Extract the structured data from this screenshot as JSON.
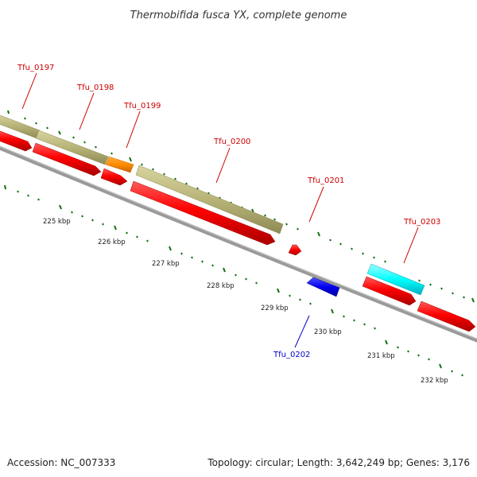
{
  "title": "Thermobifida fusca YX, complete genome",
  "footer": {
    "accession": "Accession: NC_007333",
    "summary": "Topology: circular; Length: 3,642,249 bp; Genes: 3,176"
  },
  "colors": {
    "cds": "#ff0000",
    "gene": "#b8b478",
    "orange_feature": "#ff8c00",
    "cyan_feature": "#00ffff",
    "blue_feature": "#0000ee",
    "forward_label": "#cc0000",
    "reverse_label": "#0000cc",
    "backbone": "#888888",
    "tick": "#107010"
  },
  "genes": [
    {
      "id": "tfu-0197",
      "label": "Tfu_0197",
      "color": "#cc0000"
    },
    {
      "id": "tfu-0198",
      "label": "Tfu_0198",
      "color": "#cc0000"
    },
    {
      "id": "tfu-0199",
      "label": "Tfu_0199",
      "color": "#cc0000"
    },
    {
      "id": "tfu-0200",
      "label": "Tfu_0200",
      "color": "#cc0000"
    },
    {
      "id": "tfu-0201",
      "label": "Tfu_0201",
      "color": "#cc0000"
    },
    {
      "id": "tfu-0203",
      "label": "Tfu_0203",
      "color": "#cc0000"
    },
    {
      "id": "tfu-0202",
      "label": "Tfu_0202",
      "color": "#0000cc"
    }
  ],
  "ruler": [
    "225 kbp",
    "226 kbp",
    "227 kbp",
    "228 kbp",
    "229 kbp",
    "230 kbp",
    "231 kbp",
    "232 kbp"
  ]
}
